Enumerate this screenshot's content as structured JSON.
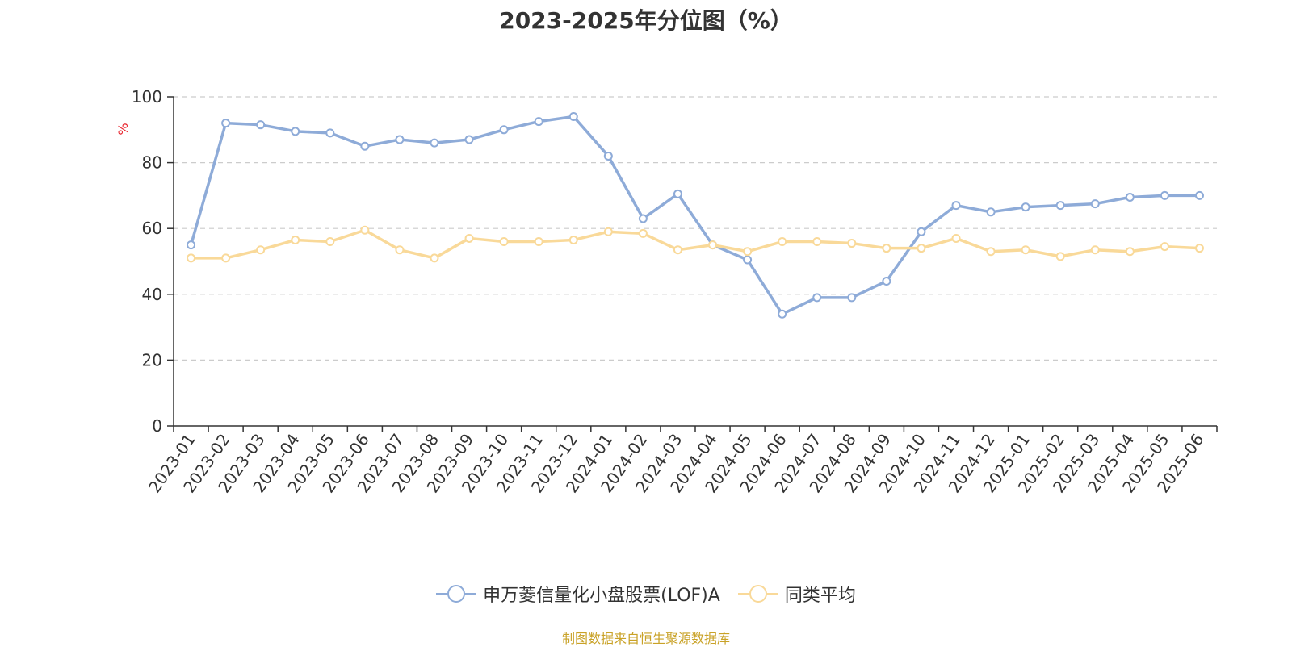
{
  "chart_data": {
    "type": "line",
    "title": "2023-2025年分位图（%）",
    "ylabel": "%",
    "xlabel": "",
    "ylim": [
      0,
      100
    ],
    "yticks": [
      "0",
      "20",
      "40",
      "60",
      "80",
      "100"
    ],
    "grid": true,
    "legend_position": "bottom",
    "categories": [
      "2023-01",
      "2023-02",
      "2023-03",
      "2023-04",
      "2023-05",
      "2023-06",
      "2023-07",
      "2023-08",
      "2023-09",
      "2023-10",
      "2023-11",
      "2023-12",
      "2024-01",
      "2024-02",
      "2024-03",
      "2024-04",
      "2024-05",
      "2024-06",
      "2024-07",
      "2024-08",
      "2024-09",
      "2024-10",
      "2024-11",
      "2024-12",
      "2025-01",
      "2025-02",
      "2025-03",
      "2025-04",
      "2025-05",
      "2025-06"
    ],
    "series": [
      {
        "name": "申万菱信量化小盘股票(LOF)A",
        "color": "#8eabd8",
        "values": [
          55,
          92,
          91.5,
          89.5,
          89,
          85,
          87,
          86,
          87,
          90,
          92.5,
          94,
          82,
          63,
          70.5,
          55,
          50.5,
          34,
          39,
          39,
          44,
          59,
          67,
          65,
          66.5,
          67,
          67.5,
          69.5,
          70,
          70
        ]
      },
      {
        "name": "同类平均",
        "color": "#f9d999",
        "values": [
          51,
          51,
          53.5,
          56.5,
          56,
          59.5,
          53.5,
          51,
          57,
          56,
          56,
          56.5,
          59,
          58.5,
          53.5,
          55,
          53,
          56,
          56,
          55.5,
          54,
          54,
          57,
          53,
          53.5,
          51.5,
          53.5,
          53,
          54.5,
          54
        ]
      }
    ]
  },
  "source_note": "制图数据来自恒生聚源数据库"
}
